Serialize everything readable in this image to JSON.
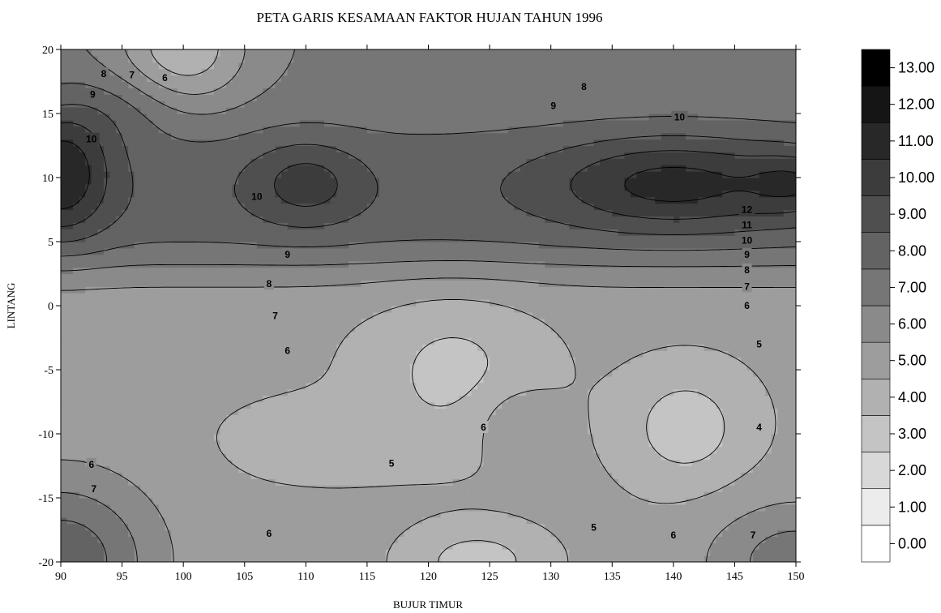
{
  "chart_data": {
    "type": "heatmap",
    "subtype": "filled-contour",
    "title": "PETA GARIS KESAMAAN FAKTOR HUJAN TAHUN 1996",
    "xlabel": "BUJUR TIMUR",
    "ylabel": "LINTANG",
    "xlim": [
      90,
      150
    ],
    "ylim": [
      -20,
      20
    ],
    "x_ticks": [
      "90",
      "95",
      "100",
      "105",
      "110",
      "115",
      "120",
      "125",
      "130",
      "135",
      "140",
      "145",
      "150"
    ],
    "y_ticks": [
      "20",
      "15",
      "10",
      "5",
      "0",
      "-5",
      "-10",
      "-15",
      "-20"
    ],
    "color_scale": {
      "levels": [
        0,
        1,
        2,
        3,
        4,
        5,
        6,
        7,
        8,
        9,
        10,
        11,
        12,
        13
      ],
      "tick_labels": [
        "0.00",
        "1.00",
        "2.00",
        "3.00",
        "4.00",
        "5.00",
        "6.00",
        "7.00",
        "8.00",
        "9.00",
        "10.00",
        "11.00",
        "12.00",
        "13.00"
      ],
      "colors": [
        "#ffffff",
        "#ececec",
        "#d8d8d8",
        "#c4c4c4",
        "#b1b1b1",
        "#9d9d9d",
        "#8a8a8a",
        "#767676",
        "#636363",
        "#4f4f4f",
        "#3c3c3c",
        "#282828",
        "#151515",
        "#000000"
      ]
    },
    "contour_labels": [
      {
        "value": "8",
        "x": 93.5,
        "y": 18.1
      },
      {
        "value": "7",
        "x": 95.8,
        "y": 18.0
      },
      {
        "value": "6",
        "x": 98.5,
        "y": 17.8
      },
      {
        "value": "9",
        "x": 92.6,
        "y": 16.5
      },
      {
        "value": "10",
        "x": 92.5,
        "y": 13.0
      },
      {
        "value": "10",
        "x": 106.0,
        "y": 8.5
      },
      {
        "value": "8",
        "x": 132.7,
        "y": 17.1
      },
      {
        "value": "9",
        "x": 130.2,
        "y": 15.6
      },
      {
        "value": "10",
        "x": 140.5,
        "y": 14.7
      },
      {
        "value": "12",
        "x": 146.0,
        "y": 7.5
      },
      {
        "value": "11",
        "x": 146.0,
        "y": 6.3
      },
      {
        "value": "10",
        "x": 146.0,
        "y": 5.1
      },
      {
        "value": "9",
        "x": 146.0,
        "y": 4.0
      },
      {
        "value": "8",
        "x": 146.0,
        "y": 2.8
      },
      {
        "value": "7",
        "x": 146.0,
        "y": 1.5
      },
      {
        "value": "6",
        "x": 146.0,
        "y": 0.0
      },
      {
        "value": "9",
        "x": 108.5,
        "y": 4.0
      },
      {
        "value": "8",
        "x": 107.0,
        "y": 1.7
      },
      {
        "value": "7",
        "x": 107.5,
        "y": -0.8
      },
      {
        "value": "6",
        "x": 108.5,
        "y": -3.5
      },
      {
        "value": "5",
        "x": 147.0,
        "y": -3.0
      },
      {
        "value": "6",
        "x": 124.5,
        "y": -9.5
      },
      {
        "value": "4",
        "x": 147.0,
        "y": -9.5
      },
      {
        "value": "5",
        "x": 117.0,
        "y": -12.3
      },
      {
        "value": "6",
        "x": 92.5,
        "y": -12.4
      },
      {
        "value": "7",
        "x": 92.7,
        "y": -14.3
      },
      {
        "value": "6",
        "x": 107.0,
        "y": -17.8
      },
      {
        "value": "5",
        "x": 133.5,
        "y": -17.3
      },
      {
        "value": "6",
        "x": 140.0,
        "y": -17.9
      },
      {
        "value": "7",
        "x": 146.5,
        "y": -17.9
      }
    ]
  }
}
